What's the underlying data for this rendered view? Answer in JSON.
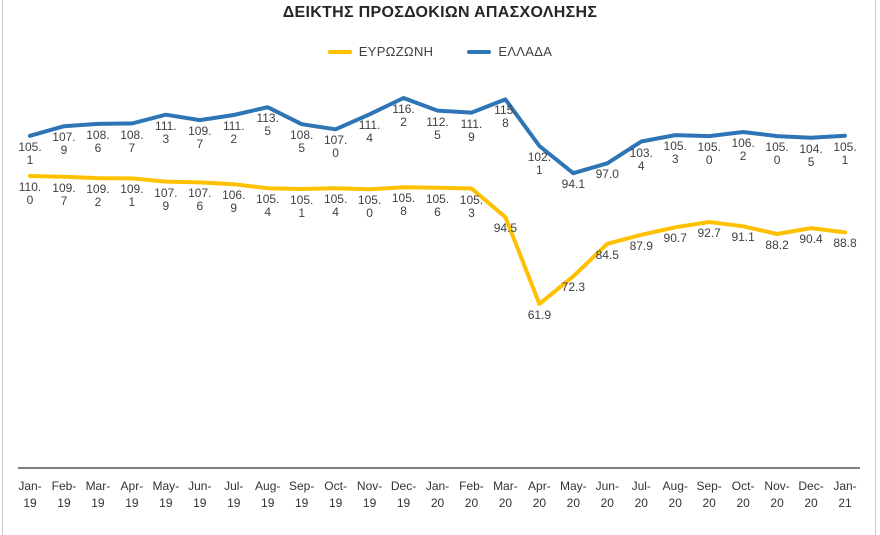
{
  "chart_data": {
    "type": "line",
    "title": "ΔΕΙΚΤΗΣ ΠΡΟΣΔΟΚΙΩΝ ΑΠΑΣΧΟΛΗΣΗΣ",
    "categories": [
      "Jan-19",
      "Feb-19",
      "Mar-19",
      "Apr-19",
      "May-19",
      "Jun-19",
      "Jul-19",
      "Aug-19",
      "Sep-19",
      "Oct-19",
      "Nov-19",
      "Dec-19",
      "Jan-20",
      "Feb-20",
      "Mar-20",
      "Apr-20",
      "May-20",
      "Jun-20",
      "Jul-20",
      "Aug-20",
      "Sep-20",
      "Oct-20",
      "Nov-20",
      "Dec-20",
      "Jan-21"
    ],
    "series": [
      {
        "name": "ΕΥΡΩΖΩΝΗ",
        "color": "#FFC000",
        "values": [
          110.0,
          109.7,
          109.2,
          109.1,
          107.9,
          107.6,
          106.9,
          105.4,
          105.1,
          105.4,
          105.0,
          105.8,
          105.6,
          105.3,
          94.5,
          61.9,
          72.3,
          84.5,
          87.9,
          90.7,
          92.7,
          91.1,
          88.2,
          90.4,
          88.8
        ]
      },
      {
        "name": "ΕΛΛΑΔΑ",
        "color": "#2E75B6",
        "values": [
          105.1,
          107.9,
          108.6,
          108.7,
          111.3,
          109.7,
          111.2,
          113.5,
          108.5,
          107.0,
          111.4,
          116.2,
          112.5,
          111.9,
          115.8,
          102.1,
          94.1,
          97.0,
          103.4,
          105.3,
          105.0,
          106.2,
          105.0,
          104.5,
          105.1
        ]
      }
    ],
    "legend_position": "top",
    "grid": false,
    "y_axis_visible": false,
    "data_labels": true,
    "label_color": "#3f3f3f",
    "axis_line_color": "#7f7f7f"
  }
}
